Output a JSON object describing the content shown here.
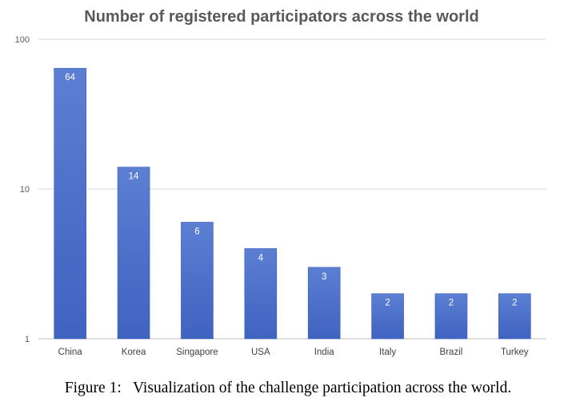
{
  "chart_data": {
    "type": "bar",
    "title": "Number of registered participators across the world",
    "categories": [
      "China",
      "Korea",
      "Singapore",
      "USA",
      "India",
      "Italy",
      "Brazil",
      "Turkey"
    ],
    "values": [
      64,
      14,
      6,
      4,
      3,
      2,
      2,
      2
    ],
    "data_labels": [
      "64",
      "14",
      "6",
      "4",
      "3",
      "2",
      "2",
      "2"
    ],
    "y_scale": "log",
    "ylim": [
      1,
      100
    ],
    "y_ticks": [
      1,
      10,
      100
    ],
    "y_tick_labels": [
      "1",
      "10",
      "100"
    ],
    "grid": true,
    "legend": "none",
    "bar_color": "#4a6fca",
    "grid_color": "#d9d9d9"
  },
  "caption": "Figure 1:   Visualization of the challenge participation across the world."
}
